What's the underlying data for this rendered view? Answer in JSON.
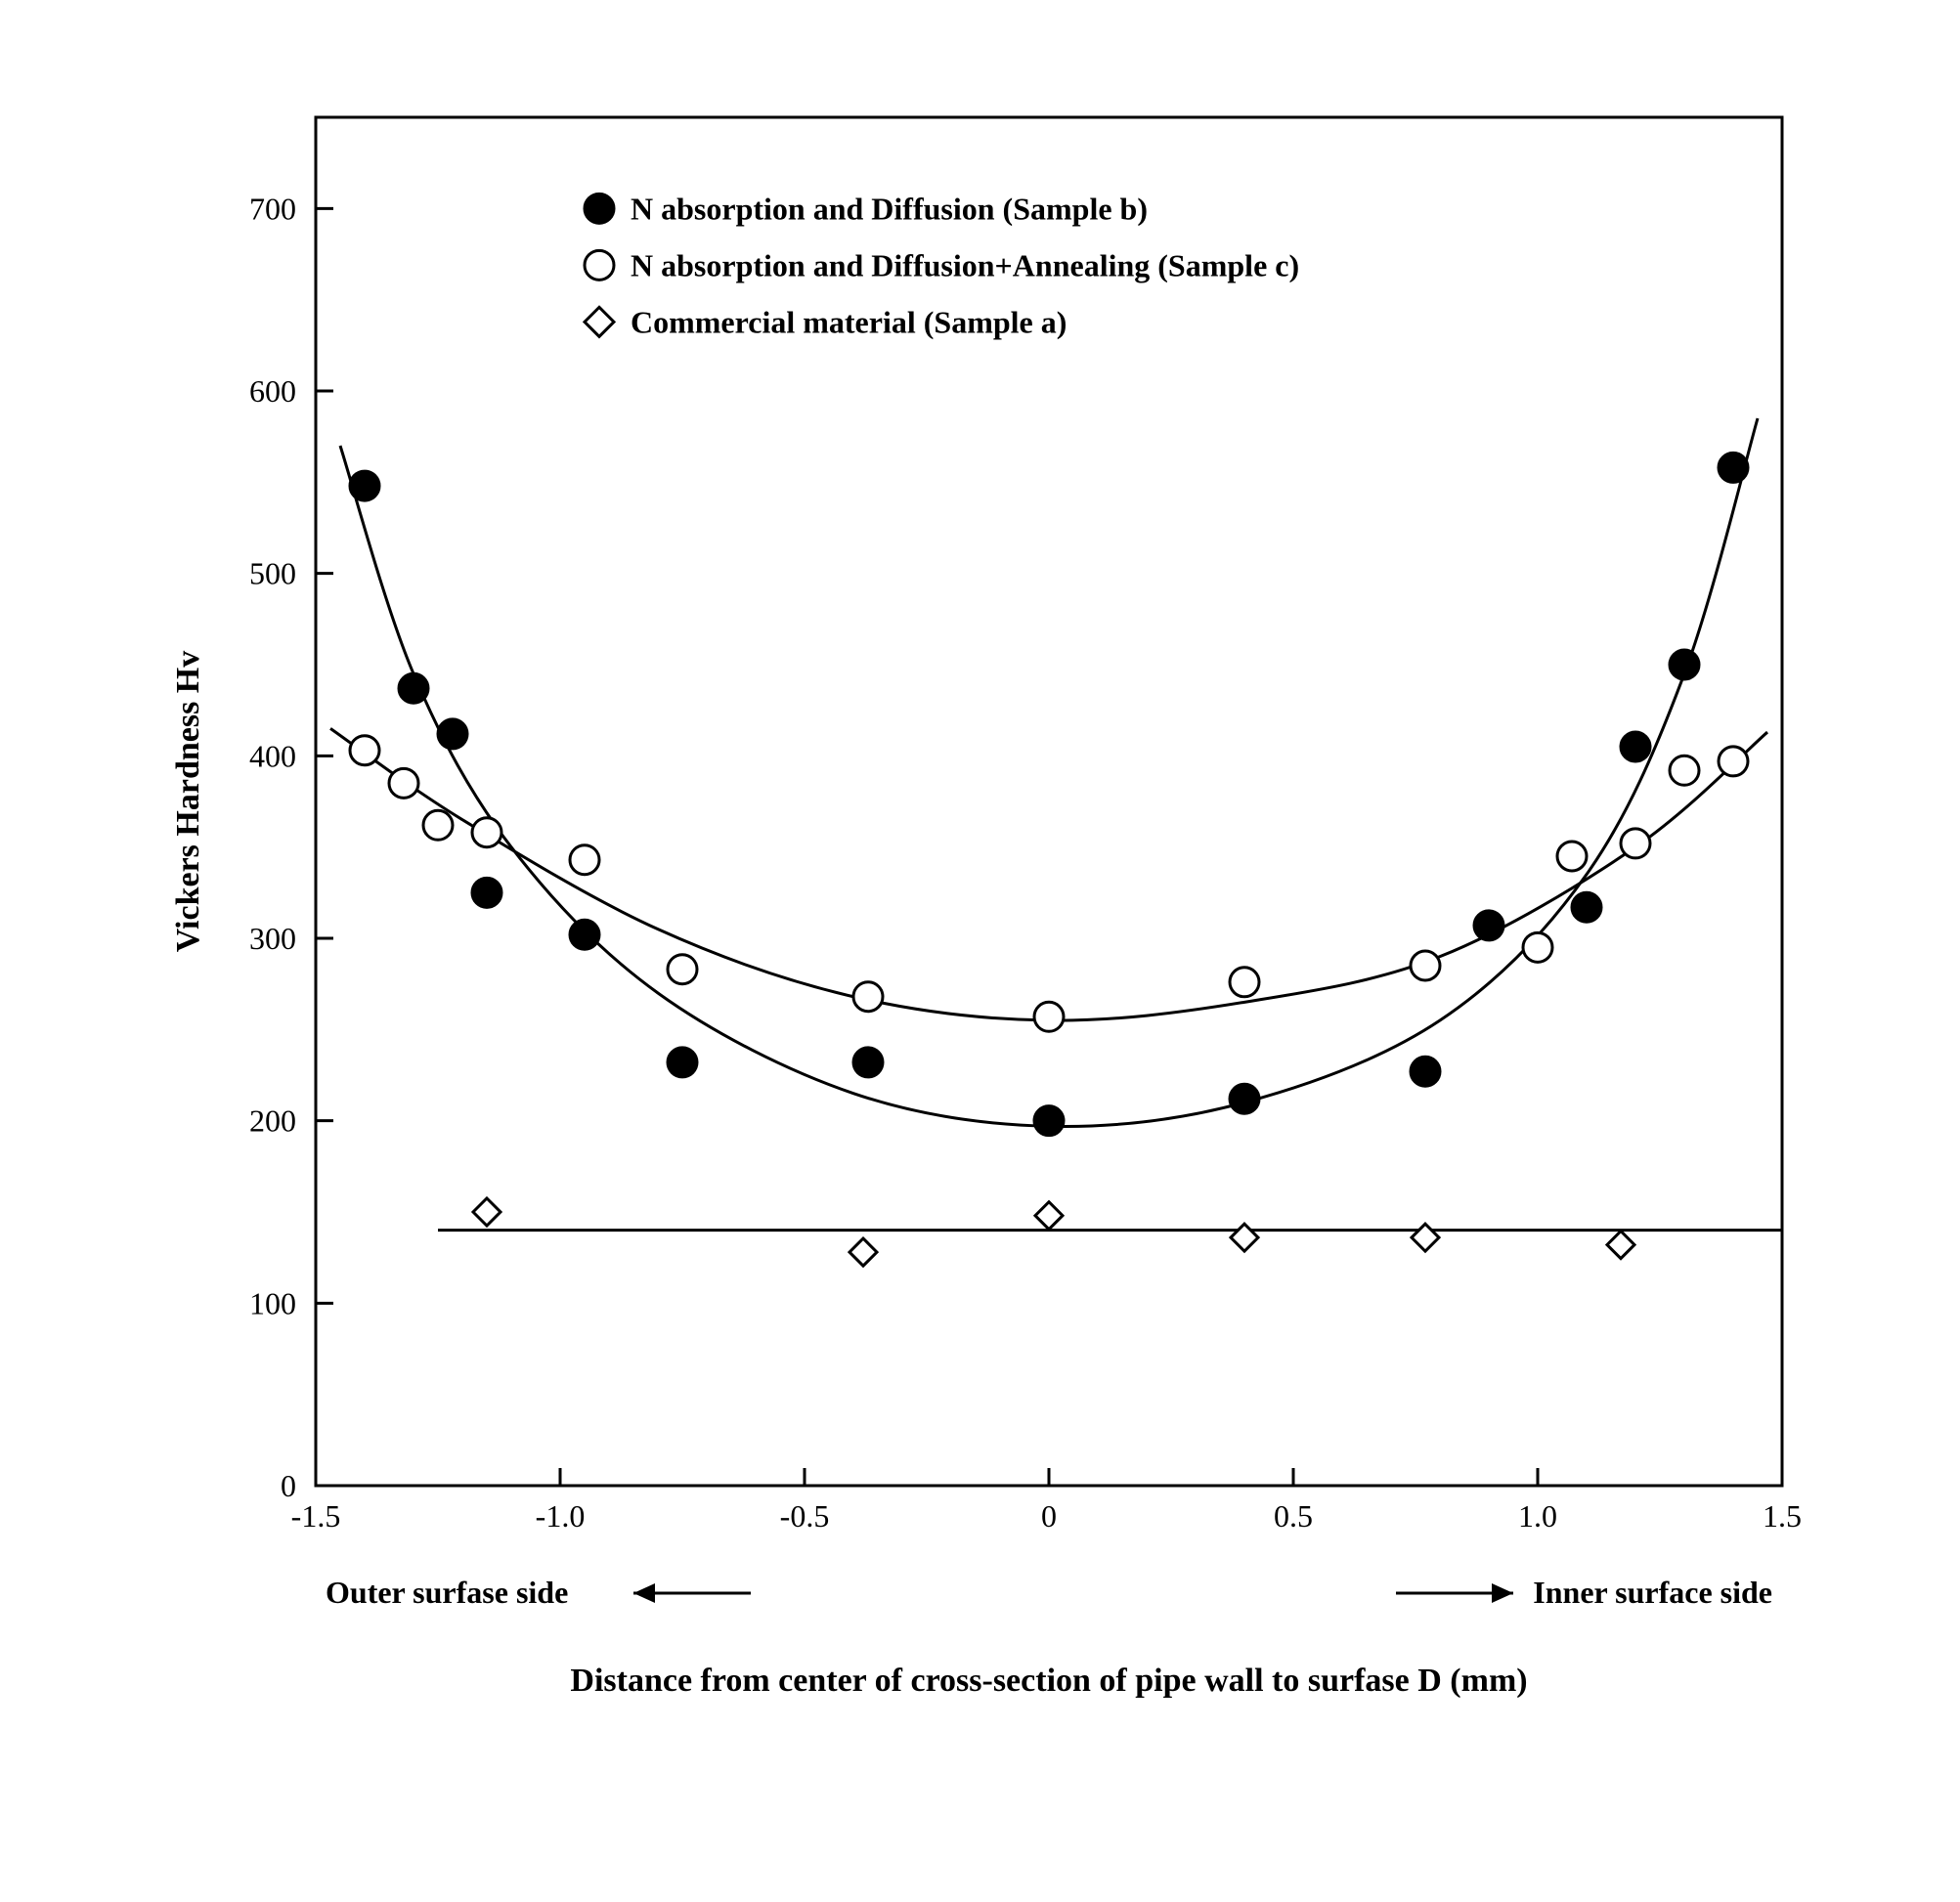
{
  "chart": {
    "type": "scatter",
    "background_color": "#ffffff",
    "stroke_color": "#000000",
    "axis_stroke_width": 3,
    "curve_stroke_width": 3,
    "marker_stroke_width": 3,
    "tick_length": 18,
    "x": {
      "min": -1.5,
      "max": 1.5,
      "ticks": [
        -1.5,
        -1.0,
        -0.5,
        0,
        0.5,
        1.0,
        1.5
      ],
      "tick_labels": [
        "-1.5",
        "-1.0",
        "-0.5",
        "0",
        "0.5",
        "1.0",
        "1.5"
      ],
      "label": "Distance from center of cross-section of pipe wall to surfase D (mm)",
      "label_fontsize": 34,
      "tick_fontsize": 32,
      "side_left": "Outer surfase side",
      "side_right": "Inner surface side",
      "side_fontsize": 32
    },
    "y": {
      "min": 0,
      "max": 750,
      "ticks": [
        0,
        100,
        200,
        300,
        400,
        500,
        600,
        700
      ],
      "tick_labels": [
        "0",
        "100",
        "200",
        "300",
        "400",
        "500",
        "600",
        "700"
      ],
      "label": "Vickers Hardness   Hv",
      "label_fontsize": 34,
      "tick_fontsize": 32
    },
    "legend": {
      "fontsize": 32,
      "items": [
        {
          "marker": "filled-circle",
          "label": "N absorption and Diffusion  (Sample b)"
        },
        {
          "marker": "open-circle",
          "label": "N absorption and Diffusion+Annealing  (Sample c)"
        },
        {
          "marker": "open-diamond",
          "label": "Commercial material  (Sample a)"
        }
      ]
    },
    "series": {
      "sample_b": {
        "marker": "filled-circle",
        "marker_radius": 15,
        "fill": "#000000",
        "points": [
          [
            -1.4,
            548
          ],
          [
            -1.3,
            437
          ],
          [
            -1.22,
            412
          ],
          [
            -1.15,
            325
          ],
          [
            -0.95,
            302
          ],
          [
            -0.75,
            232
          ],
          [
            -0.37,
            232
          ],
          [
            0.0,
            200
          ],
          [
            0.4,
            212
          ],
          [
            0.77,
            227
          ],
          [
            0.9,
            307
          ],
          [
            1.1,
            317
          ],
          [
            1.2,
            405
          ],
          [
            1.3,
            450
          ],
          [
            1.4,
            558
          ]
        ],
        "curve": [
          [
            -1.45,
            570
          ],
          [
            -1.3,
            445
          ],
          [
            -1.1,
            350
          ],
          [
            -0.8,
            270
          ],
          [
            -0.4,
            215
          ],
          [
            0.0,
            197
          ],
          [
            0.4,
            210
          ],
          [
            0.8,
            255
          ],
          [
            1.1,
            335
          ],
          [
            1.3,
            445
          ],
          [
            1.45,
            585
          ]
        ]
      },
      "sample_c": {
        "marker": "open-circle",
        "marker_radius": 15,
        "fill": "#ffffff",
        "points": [
          [
            -1.4,
            403
          ],
          [
            -1.32,
            385
          ],
          [
            -1.25,
            362
          ],
          [
            -1.15,
            358
          ],
          [
            -0.95,
            343
          ],
          [
            -0.75,
            283
          ],
          [
            -0.37,
            268
          ],
          [
            0.0,
            257
          ],
          [
            0.4,
            276
          ],
          [
            0.77,
            285
          ],
          [
            1.0,
            295
          ],
          [
            1.07,
            345
          ],
          [
            1.2,
            352
          ],
          [
            1.3,
            392
          ],
          [
            1.4,
            397
          ]
        ],
        "curve": [
          [
            -1.47,
            415
          ],
          [
            -1.2,
            365
          ],
          [
            -0.8,
            305
          ],
          [
            -0.4,
            268
          ],
          [
            0.0,
            255
          ],
          [
            0.4,
            265
          ],
          [
            0.8,
            290
          ],
          [
            1.2,
            350
          ],
          [
            1.47,
            413
          ]
        ]
      },
      "sample_a": {
        "marker": "open-diamond",
        "marker_size": 28,
        "fill": "#ffffff",
        "points": [
          [
            -1.15,
            150
          ],
          [
            -0.38,
            128
          ],
          [
            0.0,
            148
          ],
          [
            0.4,
            136
          ],
          [
            0.77,
            136
          ],
          [
            1.17,
            132
          ]
        ],
        "line_y": 140,
        "line_x0": -1.25,
        "line_x1": 1.5
      }
    }
  }
}
